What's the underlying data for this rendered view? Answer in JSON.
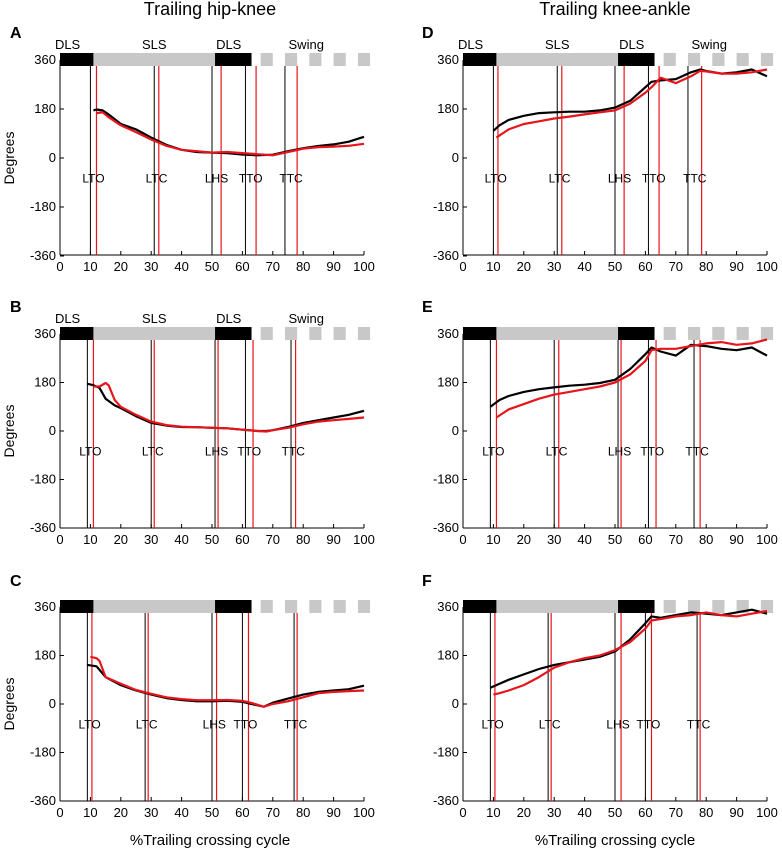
{
  "figure": {
    "col_titles": [
      "Trailing hip-knee",
      "Trailing knee-ankle"
    ],
    "xlabel": "%Trailing crossing cycle",
    "ylabel": "Degrees",
    "colors": {
      "black": "#000000",
      "red": "#e8141b",
      "phase_black": "#000000",
      "phase_gray": "#c8c8c8"
    }
  },
  "chart_data": [
    {
      "type": "line",
      "panel": "A",
      "title": "Trailing hip-knee",
      "xlim": [
        0,
        100
      ],
      "ylim": [
        -360,
        360
      ],
      "xticks": [
        0,
        10,
        20,
        30,
        40,
        50,
        60,
        70,
        80,
        90,
        100
      ],
      "yticks": [
        360,
        180,
        0,
        -180,
        -360
      ],
      "phases": {
        "labels": [
          "DLS",
          "SLS",
          "DLS",
          "Swing"
        ],
        "boundaries": [
          0,
          11,
          51,
          63,
          100
        ]
      },
      "events": {
        "labels": [
          "LTO",
          "LTC",
          "LHS",
          "TTO",
          "TTC"
        ],
        "black_x": [
          10,
          31,
          50,
          61,
          74
        ],
        "red_x": [
          12,
          32.5,
          53,
          64.5,
          78
        ]
      },
      "series": [
        {
          "name": "black",
          "x": [
            11,
            12,
            14,
            16,
            20,
            25,
            30,
            35,
            40,
            45,
            50,
            55,
            60,
            65,
            70,
            75,
            80,
            85,
            90,
            95,
            100
          ],
          "y": [
            175,
            178,
            175,
            160,
            125,
            105,
            75,
            48,
            30,
            22,
            20,
            18,
            13,
            10,
            12,
            25,
            36,
            44,
            50,
            60,
            78
          ]
        },
        {
          "name": "red",
          "x": [
            12,
            14,
            16,
            20,
            25,
            30,
            35,
            40,
            45,
            50,
            55,
            60,
            65,
            70,
            75,
            80,
            85,
            90,
            95,
            100
          ],
          "y": [
            165,
            168,
            150,
            120,
            95,
            68,
            45,
            30,
            25,
            20,
            22,
            18,
            14,
            10,
            22,
            34,
            40,
            42,
            45,
            52
          ]
        }
      ]
    },
    {
      "type": "line",
      "panel": "B",
      "title": "Trailing hip-knee",
      "xlim": [
        0,
        100
      ],
      "ylim": [
        -360,
        360
      ],
      "xticks": [
        0,
        10,
        20,
        30,
        40,
        50,
        60,
        70,
        80,
        90,
        100
      ],
      "yticks": [
        360,
        180,
        0,
        -180,
        -360
      ],
      "phases": {
        "labels": [
          "DLS",
          "SLS",
          "DLS",
          "Swing"
        ],
        "boundaries": [
          0,
          11,
          51,
          63,
          100
        ]
      },
      "events": {
        "labels": [
          "LTO",
          "LTC",
          "LHS",
          "TTO",
          "TTC"
        ],
        "black_x": [
          9,
          30,
          51,
          61,
          76
        ],
        "red_x": [
          11,
          31,
          52,
          63.5,
          77.5
        ]
      },
      "series": [
        {
          "name": "black",
          "x": [
            9,
            11,
            13,
            15,
            18,
            20,
            25,
            30,
            35,
            40,
            45,
            50,
            55,
            60,
            65,
            68,
            70,
            75,
            80,
            85,
            90,
            95,
            100
          ],
          "y": [
            175,
            170,
            160,
            120,
            95,
            85,
            55,
            30,
            20,
            15,
            14,
            12,
            10,
            5,
            0,
            0,
            3,
            15,
            30,
            40,
            50,
            60,
            75
          ]
        },
        {
          "name": "red",
          "x": [
            11,
            13,
            15,
            16,
            18,
            20,
            25,
            30,
            35,
            40,
            45,
            50,
            55,
            60,
            65,
            68,
            70,
            75,
            80,
            85,
            90,
            95,
            100
          ],
          "y": [
            165,
            165,
            178,
            170,
            115,
            90,
            60,
            35,
            22,
            16,
            14,
            12,
            10,
            5,
            0,
            -2,
            3,
            12,
            25,
            35,
            40,
            45,
            50
          ]
        }
      ]
    },
    {
      "type": "line",
      "panel": "C",
      "title": "Trailing hip-knee",
      "xlim": [
        0,
        100
      ],
      "ylim": [
        -360,
        360
      ],
      "xticks": [
        0,
        10,
        20,
        30,
        40,
        50,
        60,
        70,
        80,
        90,
        100
      ],
      "yticks": [
        360,
        180,
        0,
        -180,
        -360
      ],
      "phases": {
        "labels": [],
        "boundaries": [
          0,
          11,
          51,
          63,
          100
        ]
      },
      "events": {
        "labels": [
          "LTO",
          "LTC",
          "LHS",
          "TTO",
          "TTC"
        ],
        "black_x": [
          9,
          28,
          50,
          60,
          77
        ],
        "red_x": [
          10.5,
          29,
          51.5,
          62,
          78
        ]
      },
      "series": [
        {
          "name": "black",
          "x": [
            9,
            12,
            15,
            20,
            25,
            30,
            35,
            40,
            45,
            50,
            55,
            60,
            63,
            67,
            70,
            75,
            80,
            85,
            90,
            95,
            100
          ],
          "y": [
            145,
            140,
            100,
            70,
            50,
            35,
            22,
            15,
            10,
            10,
            12,
            8,
            0,
            -10,
            5,
            20,
            35,
            45,
            50,
            55,
            68
          ]
        },
        {
          "name": "red",
          "x": [
            10,
            12,
            13,
            15,
            20,
            25,
            30,
            35,
            40,
            45,
            50,
            55,
            60,
            63,
            67,
            70,
            75,
            80,
            85,
            90,
            95,
            100
          ],
          "y": [
            175,
            170,
            160,
            100,
            75,
            52,
            38,
            25,
            18,
            14,
            14,
            15,
            12,
            4,
            -10,
            0,
            10,
            25,
            40,
            45,
            48,
            50
          ]
        }
      ]
    },
    {
      "type": "line",
      "panel": "D",
      "title": "Trailing knee-ankle",
      "xlim": [
        0,
        100
      ],
      "ylim": [
        -360,
        360
      ],
      "xticks": [
        0,
        10,
        20,
        30,
        40,
        50,
        60,
        70,
        80,
        90,
        100
      ],
      "yticks": [
        360,
        180,
        0,
        -180,
        -360
      ],
      "phases": {
        "labels": [
          "DLS",
          "SLS",
          "DLS",
          "Swing"
        ],
        "boundaries": [
          0,
          11,
          51,
          63,
          100
        ]
      },
      "events": {
        "labels": [
          "LTO",
          "LTC",
          "LHS",
          "TTO",
          "TTC"
        ],
        "black_x": [
          10,
          31,
          50,
          61,
          74
        ],
        "red_x": [
          11.5,
          32.5,
          53,
          64.5,
          78.5
        ]
      },
      "series": [
        {
          "name": "black",
          "x": [
            10,
            12,
            15,
            20,
            25,
            30,
            35,
            40,
            45,
            50,
            55,
            60,
            62,
            65,
            70,
            75,
            78,
            80,
            85,
            90,
            95,
            100
          ],
          "y": [
            100,
            120,
            140,
            155,
            165,
            168,
            170,
            170,
            175,
            185,
            210,
            260,
            280,
            285,
            290,
            315,
            325,
            320,
            310,
            315,
            325,
            300
          ]
        },
        {
          "name": "red",
          "x": [
            11,
            13,
            15,
            20,
            25,
            30,
            35,
            40,
            45,
            50,
            55,
            60,
            62,
            65,
            70,
            75,
            78,
            80,
            85,
            90,
            95,
            100
          ],
          "y": [
            75,
            90,
            105,
            125,
            135,
            145,
            152,
            160,
            168,
            175,
            200,
            240,
            260,
            295,
            275,
            300,
            320,
            318,
            310,
            310,
            315,
            325
          ]
        }
      ]
    },
    {
      "type": "line",
      "panel": "E",
      "title": "Trailing knee-ankle",
      "xlim": [
        0,
        100
      ],
      "ylim": [
        -360,
        360
      ],
      "xticks": [
        0,
        10,
        20,
        30,
        40,
        50,
        60,
        70,
        80,
        90,
        100
      ],
      "yticks": [
        360,
        180,
        0,
        -180,
        -360
      ],
      "phases": {
        "labels": [],
        "boundaries": [
          0,
          11,
          51,
          63,
          100
        ]
      },
      "events": {
        "labels": [
          "LTO",
          "LTC",
          "LHS",
          "TTO",
          "TTC"
        ],
        "black_x": [
          9,
          30,
          51,
          61,
          76
        ],
        "red_x": [
          11,
          31.5,
          52,
          63.5,
          78
        ]
      },
      "series": [
        {
          "name": "black",
          "x": [
            9,
            12,
            15,
            20,
            25,
            30,
            35,
            40,
            45,
            50,
            55,
            60,
            62,
            65,
            70,
            75,
            80,
            85,
            90,
            95,
            100
          ],
          "y": [
            90,
            115,
            130,
            145,
            155,
            162,
            168,
            172,
            178,
            190,
            230,
            285,
            310,
            295,
            280,
            320,
            315,
            305,
            300,
            310,
            280
          ]
        },
        {
          "name": "red",
          "x": [
            11,
            13,
            15,
            20,
            25,
            30,
            35,
            40,
            45,
            50,
            55,
            60,
            62,
            65,
            70,
            75,
            80,
            85,
            90,
            95,
            100
          ],
          "y": [
            50,
            65,
            80,
            100,
            120,
            135,
            145,
            155,
            165,
            180,
            210,
            260,
            300,
            305,
            305,
            315,
            325,
            330,
            320,
            325,
            340
          ]
        }
      ]
    },
    {
      "type": "line",
      "panel": "F",
      "title": "Trailing knee-ankle",
      "xlim": [
        0,
        100
      ],
      "ylim": [
        -360,
        360
      ],
      "xticks": [
        0,
        10,
        20,
        30,
        40,
        50,
        60,
        70,
        80,
        90,
        100
      ],
      "yticks": [
        360,
        180,
        0,
        -180,
        -360
      ],
      "phases": {
        "labels": [],
        "boundaries": [
          0,
          11,
          51,
          63,
          100
        ]
      },
      "events": {
        "labels": [
          "LTO",
          "LTC",
          "LHS",
          "TTO",
          "TTC"
        ],
        "black_x": [
          9,
          28,
          50,
          60,
          77
        ],
        "red_x": [
          10.5,
          29,
          52,
          62,
          78
        ]
      },
      "series": [
        {
          "name": "black",
          "x": [
            9,
            12,
            15,
            20,
            25,
            30,
            35,
            40,
            45,
            50,
            55,
            60,
            62,
            65,
            70,
            75,
            80,
            85,
            90,
            95,
            100
          ],
          "y": [
            60,
            75,
            90,
            110,
            130,
            145,
            155,
            165,
            175,
            195,
            240,
            300,
            325,
            320,
            330,
            340,
            335,
            330,
            340,
            350,
            335
          ]
        },
        {
          "name": "red",
          "x": [
            10,
            12,
            15,
            20,
            25,
            30,
            35,
            40,
            45,
            50,
            55,
            60,
            62,
            65,
            70,
            75,
            80,
            85,
            90,
            95,
            100
          ],
          "y": [
            35,
            40,
            50,
            70,
            100,
            135,
            155,
            170,
            180,
            200,
            230,
            280,
            310,
            315,
            325,
            330,
            340,
            330,
            325,
            335,
            345
          ]
        }
      ]
    }
  ]
}
